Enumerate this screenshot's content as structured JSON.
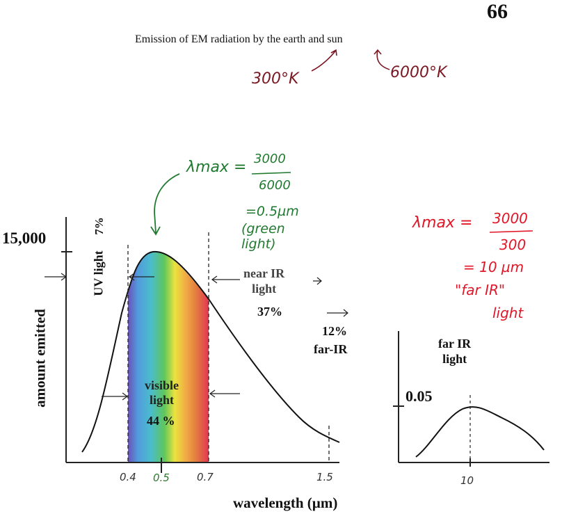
{
  "page_number": "66",
  "title": "Emission of EM radiation by the earth and sun",
  "annotations": {
    "earth_temp": "300°K",
    "sun_temp": "6000°K"
  },
  "left_graph": {
    "y_max_label": "15,000",
    "y_axis_label": "amount emitted",
    "x_axis_label": "wavelength (µm)",
    "x_ticks": [
      "0.4",
      "0.5",
      "0.7",
      "1.5"
    ],
    "uv": {
      "label": "UV light",
      "percent": "7%"
    },
    "visible": {
      "label_line1": "visible",
      "label_line2": "light",
      "percent": "44 %"
    },
    "near_ir": {
      "label_line1": "near IR",
      "label_line2": "light",
      "percent": "37%"
    },
    "far_ir": {
      "percent": "12%",
      "label": "far-IR"
    }
  },
  "sun_note": {
    "lambda": "λmax =",
    "numerator": "3000",
    "denominator": "6000",
    "result": "=0.5µm",
    "paren_line1": "(green",
    "paren_line2": "light)"
  },
  "earth_note": {
    "lambda": "λmax =",
    "numerator": "3000",
    "denominator": "300",
    "result": "= 10 µm",
    "far": "\"far IR\"",
    "light": "light"
  },
  "right_graph": {
    "label_line1": "far IR",
    "label_line2": "light",
    "y_max_label": "0.05",
    "x_tick": "10"
  },
  "colors": {
    "annotation_dark_red": "#7a1822",
    "sun_note_green": "#1f7a2f",
    "earth_note_red": "#e01728",
    "spectrum": [
      "#5a3fb0",
      "#3f8fd8",
      "#36b4c8",
      "#4cc04a",
      "#e8e02a",
      "#f0a030",
      "#e0702a",
      "#e02040"
    ]
  }
}
